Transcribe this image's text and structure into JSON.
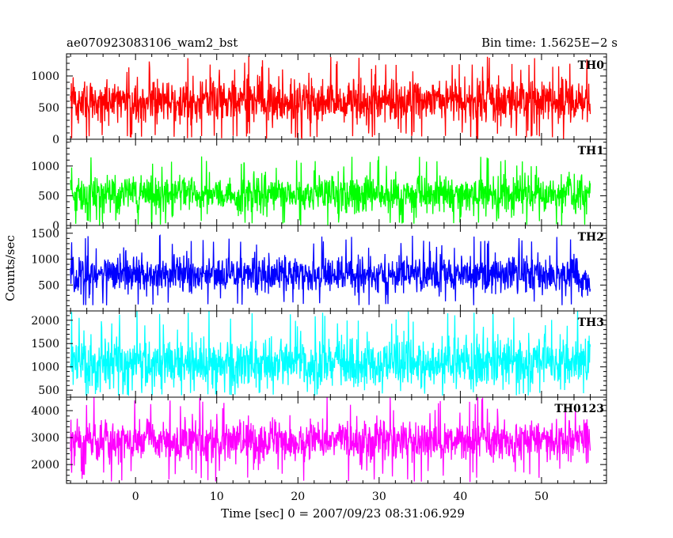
{
  "header": {
    "title": "ae070923083106_wam2_bst",
    "bin_time": "Bin time: 1.5625E−2 s"
  },
  "chart_data": [
    {
      "type": "line",
      "label": "TH0",
      "color": "#ff0000",
      "ylim": [
        0,
        1350
      ],
      "yticks": [
        0,
        500,
        1000
      ],
      "mean": 600,
      "spread": 270,
      "min_clip": 0
    },
    {
      "type": "line",
      "label": "TH1",
      "color": "#00ff00",
      "ylim": [
        0,
        1450
      ],
      "yticks": [
        0,
        500,
        1000
      ],
      "mean": 520,
      "spread": 240,
      "min_clip": 0
    },
    {
      "type": "line",
      "label": "TH2",
      "color": "#0000ff",
      "ylim": [
        0,
        1650
      ],
      "yticks": [
        500,
        1000,
        1500
      ],
      "mean": 700,
      "spread": 280,
      "min_clip": 100
    },
    {
      "type": "line",
      "label": "TH3",
      "color": "#00ffff",
      "ylim": [
        350,
        2200
      ],
      "yticks": [
        500,
        1000,
        1500,
        2000
      ],
      "mean": 1100,
      "spread": 420,
      "min_clip": 380
    },
    {
      "type": "line",
      "label": "TH0123",
      "color": "#ff00ff",
      "ylim": [
        1300,
        4500
      ],
      "yticks": [
        2000,
        3000,
        4000
      ],
      "mean": 2900,
      "spread": 600,
      "min_clip": 1350
    }
  ],
  "shared_axis": {
    "xlim": [
      -8.5,
      58
    ],
    "data_x_range": [
      -8,
      56
    ],
    "xticks": [
      0,
      10,
      20,
      30,
      40,
      50
    ],
    "xlabel": "Time [sec] 0 = 2007/09/23 08:31:06.929",
    "ylabel": "Counts/sec"
  }
}
